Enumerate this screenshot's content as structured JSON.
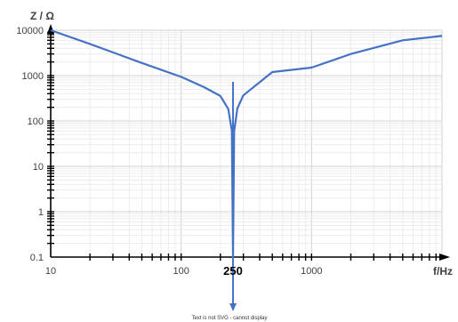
{
  "chart_data": {
    "type": "line",
    "x_scale": "log",
    "y_scale": "log",
    "xlim": [
      10,
      10000
    ],
    "ylim": [
      0.1,
      10000
    ],
    "grid": true,
    "xlabel": "f/Hz",
    "ylabel": "Z / Ω",
    "x_tick_labels": [
      "10",
      "100",
      "1000"
    ],
    "x_tick_values": [
      10,
      100,
      1000
    ],
    "y_tick_labels": [
      "0.1",
      "1",
      "10",
      "100",
      "1000",
      "10000"
    ],
    "y_tick_values": [
      0.1,
      1,
      10,
      100,
      1000,
      10000
    ],
    "series": [
      {
        "color": "#4472C4",
        "x": [
          10,
          20,
          50,
          100,
          150,
          200,
          230,
          245,
          250,
          255,
          270,
          300,
          500,
          1000,
          2000,
          5000,
          10000
        ],
        "values": [
          10000,
          5000,
          1900,
          938,
          556,
          356,
          183,
          61,
          0.1,
          59,
          189,
          367,
          1200,
          1500,
          3000,
          6000,
          7500
        ]
      }
    ],
    "annotations": [
      {
        "text": "250",
        "x": 250,
        "color": "#000000",
        "arrow_color": "#4472C4"
      }
    ],
    "footer_note": "Text is not SVG - cannot display"
  }
}
